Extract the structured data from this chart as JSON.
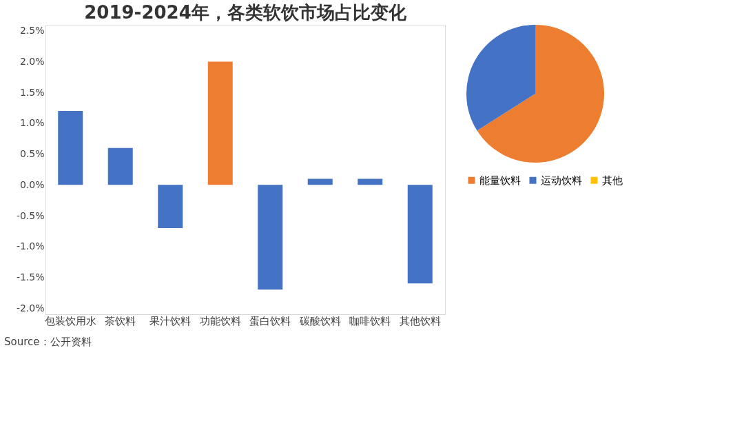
{
  "chart_data": [
    {
      "type": "bar",
      "title": "2019-2024年，各类软饮市场占比变化",
      "categories": [
        "包装饮用水",
        "茶饮料",
        "果汁饮料",
        "功能饮料",
        "蛋白饮料",
        "碳酸饮料",
        "咖啡饮料",
        "其他饮料"
      ],
      "values": [
        1.2,
        0.6,
        -0.7,
        2.0,
        -1.7,
        0.1,
        0.1,
        -1.6
      ],
      "colors": [
        "#4472c4",
        "#4472c4",
        "#4472c4",
        "#ed7d31",
        "#4472c4",
        "#4472c4",
        "#4472c4",
        "#4472c4"
      ],
      "ylim": [
        -2.1,
        2.6
      ],
      "yticks": [
        {
          "value": -2.0,
          "label": "-2.0%"
        },
        {
          "value": -1.5,
          "label": "-1.5%"
        },
        {
          "value": -1.0,
          "label": "-1.0%"
        },
        {
          "value": -0.5,
          "label": "-0.5%"
        },
        {
          "value": 0.0,
          "label": "0.0%"
        },
        {
          "value": 0.5,
          "label": "0.5%"
        },
        {
          "value": 1.0,
          "label": "1.0%"
        },
        {
          "value": 1.5,
          "label": "1.5%"
        },
        {
          "value": 2.0,
          "label": "2.0%"
        },
        {
          "value": 2.5,
          "label": "2.5%"
        }
      ],
      "grid": false,
      "annotations": [
        "Source：公开资料"
      ]
    },
    {
      "type": "pie",
      "categories": [
        "能量饮料",
        "运动饮料",
        "其他"
      ],
      "values": [
        66,
        34,
        0
      ],
      "colors": [
        "#ed7d31",
        "#4472c4",
        "#ffc000"
      ],
      "legend": "bottom"
    }
  ]
}
